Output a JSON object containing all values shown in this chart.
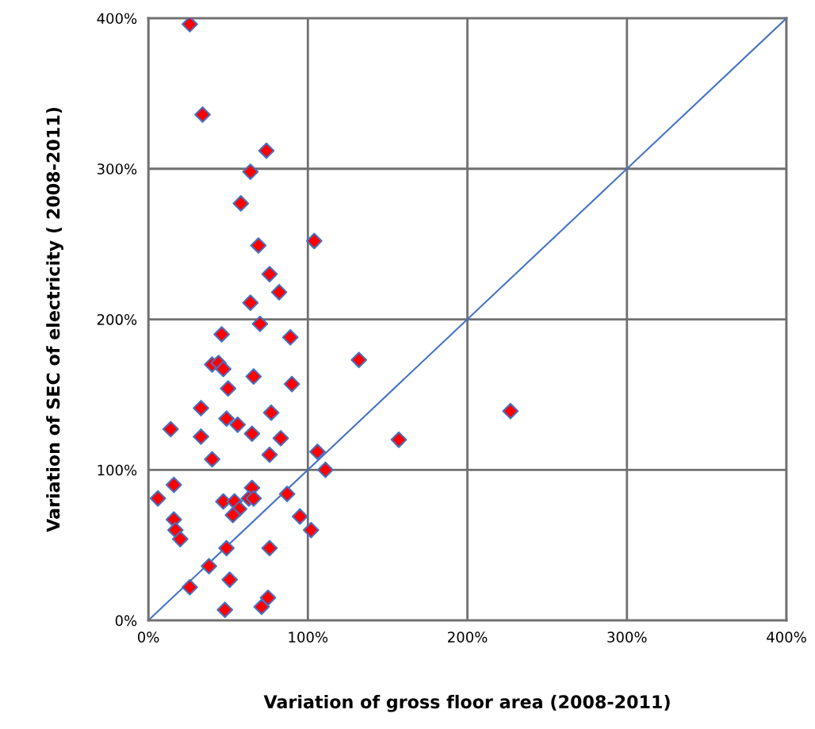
{
  "chart_data": {
    "type": "scatter",
    "xlabel": "Variation of gross floor area (2008-2011)",
    "ylabel": "Variation of SEC of electricity ( 2008-2011)",
    "xlim": [
      0,
      400
    ],
    "ylim": [
      0,
      400
    ],
    "xticks": [
      {
        "value": 0,
        "label": "0%"
      },
      {
        "value": 100,
        "label": "100%"
      },
      {
        "value": 200,
        "label": "200%"
      },
      {
        "value": 300,
        "label": "300%"
      },
      {
        "value": 400,
        "label": "400%"
      }
    ],
    "yticks": [
      {
        "value": 0,
        "label": "0%"
      },
      {
        "value": 100,
        "label": "100%"
      },
      {
        "value": 200,
        "label": "200%"
      },
      {
        "value": 300,
        "label": "300%"
      },
      {
        "value": 400,
        "label": "400%"
      }
    ],
    "grid": true,
    "series": [
      {
        "marker": "diamond",
        "color": "#ff0000",
        "x": [
          26,
          34,
          74,
          64,
          58,
          104,
          69,
          76,
          82,
          64,
          70,
          46,
          89,
          132,
          40,
          44,
          47,
          66,
          90,
          50,
          33,
          77,
          227,
          14,
          49,
          56,
          65,
          33,
          83,
          157,
          106,
          76,
          40,
          111,
          16,
          65,
          6,
          47,
          54,
          63,
          66,
          87,
          57,
          53,
          16,
          17,
          20,
          95,
          102,
          49,
          76,
          38,
          51,
          26,
          48,
          75,
          71
        ],
        "values": [
          396,
          336,
          312,
          298,
          277,
          252,
          249,
          230,
          218,
          211,
          197,
          190,
          188,
          173,
          170,
          171,
          167,
          162,
          157,
          154,
          141,
          138,
          139,
          127,
          134,
          130,
          124,
          122,
          121,
          120,
          112,
          110,
          107,
          100,
          90,
          88,
          81,
          79,
          79,
          81,
          81,
          84,
          74,
          70,
          67,
          60,
          54,
          69,
          60,
          48,
          48,
          36,
          27,
          22,
          7,
          15,
          9
        ]
      },
      {
        "type": "line",
        "marker": "none",
        "color": "#4472c4",
        "x": [
          0,
          400
        ],
        "values": [
          0,
          400
        ]
      }
    ]
  }
}
